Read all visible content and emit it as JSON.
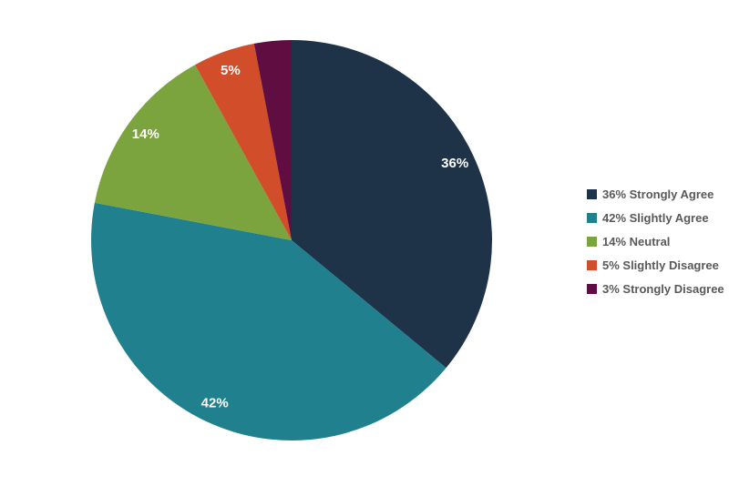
{
  "page": {
    "background_color": "#ffffff"
  },
  "chart_data": {
    "type": "pie",
    "title": "",
    "start_angle_deg": 0,
    "direction": "clockwise",
    "label_color": "#ffffff",
    "legend_position": "right",
    "legend_text_color": "#58595B",
    "slices": [
      {
        "name": "strongly-agree",
        "value": 36,
        "pie_label": "36%",
        "color": "#1F3348",
        "legend_label": "36% Strongly Agree"
      },
      {
        "name": "slightly-agree",
        "value": 42,
        "pie_label": "42%",
        "color": "#20808E",
        "legend_label": "42% Slightly Agree"
      },
      {
        "name": "neutral",
        "value": 14,
        "pie_label": "14%",
        "color": "#7BA33E",
        "legend_label": "14% Neutral"
      },
      {
        "name": "slightly-disagree",
        "value": 5,
        "pie_label": "5%",
        "color": "#D24D2A",
        "legend_label": "5% Slightly Disagree"
      },
      {
        "name": "strongly-disagree",
        "value": 3,
        "pie_label": "",
        "color": "#600D41",
        "legend_label": "3% Strongly Disagree"
      }
    ]
  }
}
